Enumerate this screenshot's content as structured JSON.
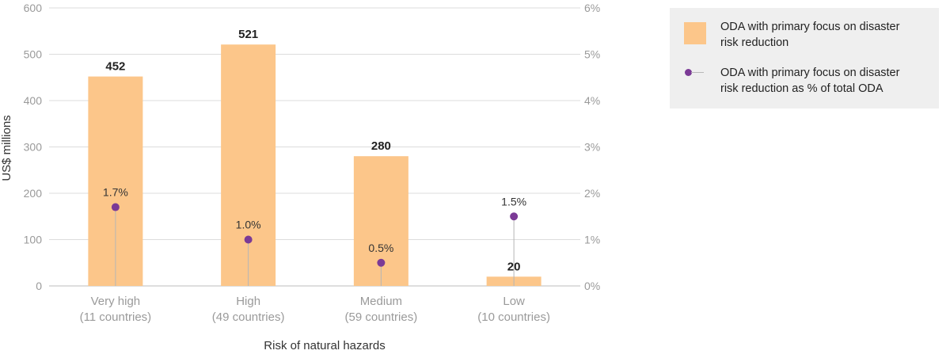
{
  "chart_data": {
    "type": "bar",
    "categories": [
      "Very high",
      "High",
      "Medium",
      "Low"
    ],
    "category_sublabels": [
      "(11 countries)",
      "(49 countries)",
      "(59 countries)",
      "(10 countries)"
    ],
    "series": [
      {
        "name": "ODA with primary focus on disaster risk reduction",
        "values": [
          452,
          521,
          280,
          20
        ],
        "axis": "left",
        "color": "#fcc68a"
      },
      {
        "name": "ODA with primary focus on disaster risk reduction as % of total ODA",
        "values": [
          1.7,
          1.0,
          0.5,
          1.5
        ],
        "axis": "right",
        "color": "#7b3a96"
      }
    ],
    "value_labels": [
      "452",
      "521",
      "280",
      "20"
    ],
    "pct_labels": [
      "1.7%",
      "1.0%",
      "0.5%",
      "1.5%"
    ],
    "xlabel": "Risk of natural hazards",
    "ylabel": "US$ millions",
    "ylim": [
      0,
      600
    ],
    "y_ticks": [
      "0",
      "100",
      "200",
      "300",
      "400",
      "500",
      "600"
    ],
    "y2lim": [
      0,
      6
    ],
    "y2_ticks": [
      "0%",
      "1%",
      "2%",
      "3%",
      "4%",
      "5%",
      "6%"
    ],
    "grid": true,
    "legend_position": "right"
  },
  "legend": {
    "bar_label_line1": "ODA with primary focus on disaster",
    "bar_label_line2": "risk reduction",
    "dot_label_line1": "ODA with primary focus on disaster",
    "dot_label_line2": "risk reduction as % of total ODA"
  }
}
